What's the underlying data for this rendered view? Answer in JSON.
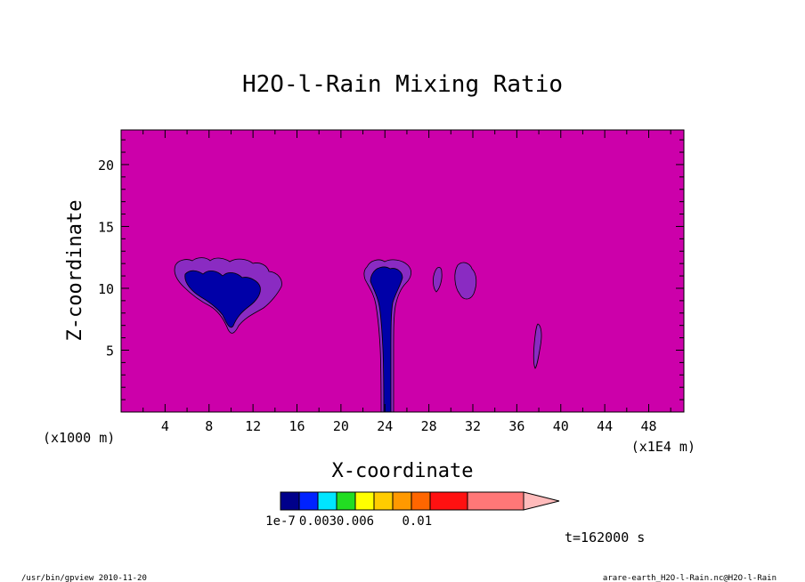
{
  "chart_data": {
    "type": "heatmap",
    "title": "H2O-l-Rain Mixing Ratio",
    "xlabel": "X-coordinate",
    "ylabel": "Z-coordinate",
    "x_unit_left": "(x1000 m)",
    "x_unit_right": "(x1E4 m)",
    "x_ticks": [
      "4",
      "8",
      "12",
      "16",
      "20",
      "24",
      "28",
      "32",
      "36",
      "40",
      "44",
      "48"
    ],
    "x_tick_values": [
      4,
      8,
      12,
      16,
      20,
      24,
      28,
      32,
      36,
      40,
      44,
      48
    ],
    "y_ticks": [
      "5",
      "10",
      "15",
      "20"
    ],
    "y_tick_values": [
      5,
      10,
      15,
      20
    ],
    "xlim": [
      0,
      51.2
    ],
    "ylim": [
      0,
      22.8
    ],
    "background_color": "#cc00aa",
    "colorbar": {
      "colors": [
        "#00008b",
        "#0022ff",
        "#00e5ff",
        "#22dd22",
        "#ffff00",
        "#ffcc00",
        "#ff9900",
        "#ff6600",
        "#ff1111",
        "#ff7777"
      ],
      "extend_color": "#ffbbbb",
      "labels": [
        "1e-7",
        "0.003",
        "0.006",
        "0.01"
      ],
      "label_positions": [
        0,
        2,
        4,
        7.3
      ]
    },
    "time_label": "t=162000 s"
  },
  "footer": {
    "left": "/usr/bin/gpview  2010-11-20",
    "right": "arare-earth_H2O-l-Rain.nc@H2O-l-Rain"
  }
}
